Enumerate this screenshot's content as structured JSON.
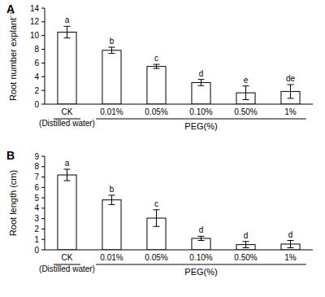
{
  "chart_data": [
    {
      "type": "bar",
      "title": "A",
      "ylabel": "Root number explant⁻¹",
      "xlabel": "PEG(%)",
      "categories": [
        "CK (Distilled water)",
        "0.01%",
        "0.05%",
        "0.10%",
        "0.50%",
        "1%"
      ],
      "values": [
        10.5,
        7.85,
        5.5,
        3.15,
        1.65,
        1.85
      ],
      "errors": [
        0.85,
        0.45,
        0.3,
        0.45,
        1.0,
        1.0
      ],
      "annotations": [
        "a",
        "b",
        "c",
        "d",
        "e",
        "de"
      ],
      "color": "#ffffff",
      "ylim": [
        0,
        14
      ],
      "yticks": [
        0,
        2,
        4,
        6,
        8,
        10,
        12,
        14
      ],
      "grid": false
    },
    {
      "type": "bar",
      "title": "B",
      "ylabel": "Root length (cm)",
      "xlabel": "PEG(%)",
      "categories": [
        "CK (Distilled water)",
        "0.01%",
        "0.05%",
        "0.10%",
        "0.50%",
        "1%"
      ],
      "values": [
        7.2,
        4.8,
        3.05,
        1.1,
        0.5,
        0.55
      ],
      "errors": [
        0.55,
        0.45,
        0.8,
        0.2,
        0.3,
        0.35
      ],
      "annotations": [
        "a",
        "b",
        "c",
        "d",
        "d",
        "d"
      ],
      "color": "#ffffff",
      "ylim": [
        0,
        9
      ],
      "yticks": [
        0,
        1,
        2,
        3,
        4,
        5,
        6,
        7,
        8,
        9
      ],
      "grid": false
    }
  ]
}
